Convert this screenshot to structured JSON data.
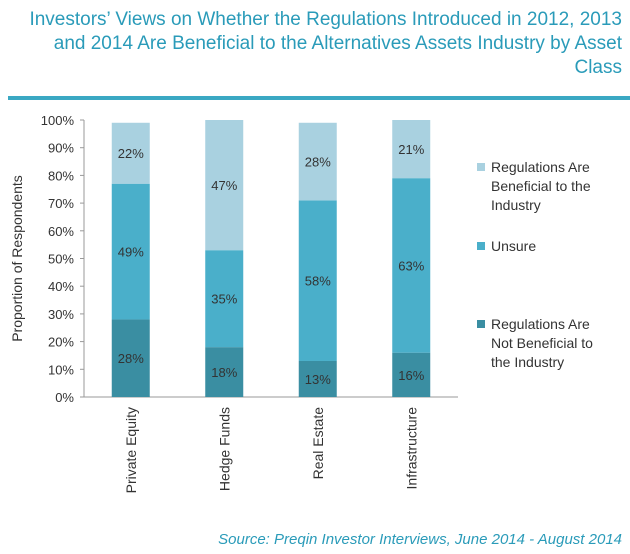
{
  "title": "Investors’ Views on Whether the Regulations Introduced in 2012, 2013 and 2014 Are Beneficial to the Alternatives Assets Industry by Asset Class",
  "source": "Source: Preqin Investor Interviews, June 2014 - August 2014",
  "colors": {
    "beneficial": "#a9d1e0",
    "unsure": "#4aafca",
    "not_beneficial": "#3a8ea2",
    "title": "#2a9bb9"
  },
  "chart_data": {
    "type": "bar",
    "stacked": true,
    "categories": [
      "Private Equity",
      "Hedge Funds",
      "Real Estate",
      "Infrastructure"
    ],
    "series": [
      {
        "name": "Regulations Are Not Beneficial to the Industry",
        "values": [
          28,
          18,
          13,
          16
        ],
        "color": "#3a8ea2"
      },
      {
        "name": "Unsure",
        "values": [
          49,
          35,
          58,
          63
        ],
        "color": "#4aafca"
      },
      {
        "name": "Regulations Are Beneficial to the Industry",
        "values": [
          22,
          47,
          28,
          21
        ],
        "color": "#a9d1e0"
      }
    ],
    "ylabel": "Proportion of Respondents",
    "xlabel": "",
    "ylim": [
      0,
      100
    ],
    "yticks": [
      "0%",
      "10%",
      "20%",
      "30%",
      "40%",
      "50%",
      "60%",
      "70%",
      "80%",
      "90%",
      "100%"
    ],
    "legend": "right",
    "legend_entries": [
      "Regulations Are Beneficial to the Industry",
      "Unsure",
      "Regulations Are Not Beneficial to the Industry"
    ],
    "grid": false
  }
}
